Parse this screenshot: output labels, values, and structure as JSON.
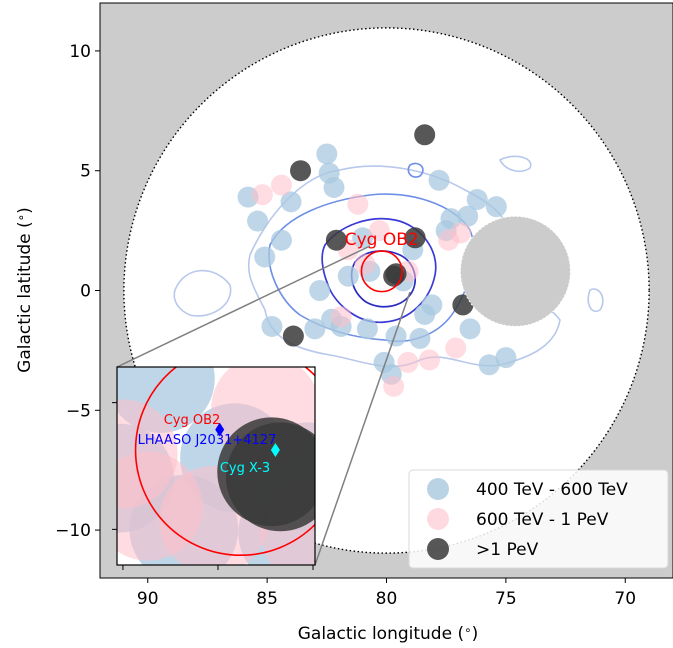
{
  "chart_data": {
    "type": "scatter",
    "title": "",
    "xlabel": "Galactic longitude ($^\\circ$)",
    "ylabel": "Galactic latitude ($^\\circ$)",
    "xlim": [
      92,
      68
    ],
    "ylim": [
      -12,
      12
    ],
    "x_ticks": [
      90,
      85,
      80,
      75,
      70
    ],
    "x_tick_labels": [
      "90",
      "85",
      "80",
      "75",
      "70"
    ],
    "y_ticks": [
      10,
      5,
      0,
      -5,
      -10
    ],
    "y_tick_labels": [
      "10",
      "5",
      "0",
      "−5",
      "−10"
    ],
    "region": {
      "center": [
        80,
        0
      ],
      "radius": 11
    },
    "masked_disk": {
      "center": [
        74.6,
        0.8
      ],
      "radius": 2.3
    },
    "colors": {
      "background_outside_region": "#cccccc",
      "series_400_600": "#a8c8df",
      "series_600_1000": "#ffc0cb",
      "series_over_1pev": "#3a3a3a",
      "cyg_ob2": "#ff0000",
      "lhaaso_source": "#0000ff",
      "cyg_x3": "#00ffff",
      "contour_dark": "#3a3ad6",
      "contour_mid": "#6e8fe6",
      "contour_light": "#b7c8ec"
    },
    "legend": {
      "position": "lower-right",
      "entries": [
        "400 TeV - 600 TeV",
        "600 TeV - 1 PeV",
        ">1 PeV"
      ]
    },
    "series": [
      {
        "name": "400 TeV - 600 TeV",
        "points": [
          [
            86.4,
            -4.2
          ],
          [
            85.8,
            3.9
          ],
          [
            85.4,
            2.9
          ],
          [
            85.1,
            1.4
          ],
          [
            84.0,
            3.7
          ],
          [
            82.5,
            5.7
          ],
          [
            82.4,
            4.9
          ],
          [
            82.2,
            4.3
          ],
          [
            81.6,
            0.6
          ],
          [
            81.0,
            2.2
          ],
          [
            80.8,
            -1.6
          ],
          [
            79.6,
            -1.9
          ],
          [
            78.6,
            -2.0
          ],
          [
            78.4,
            -1.0
          ],
          [
            78.1,
            -0.6
          ],
          [
            77.8,
            4.6
          ],
          [
            77.3,
            3.0
          ],
          [
            76.6,
            3.1
          ],
          [
            76.2,
            3.8
          ],
          [
            75.4,
            3.5
          ],
          [
            75.0,
            -2.8
          ],
          [
            80.1,
            -3.0
          ],
          [
            79.8,
            -3.5
          ],
          [
            82.3,
            -1.2
          ],
          [
            84.4,
            2.1
          ],
          [
            82.8,
            0.0
          ],
          [
            79.3,
            0.4
          ],
          [
            80.7,
            0.8
          ],
          [
            81.9,
            -1.5
          ],
          [
            76.5,
            -1.6
          ],
          [
            75.7,
            -3.1
          ],
          [
            77.5,
            2.5
          ],
          [
            84.8,
            -1.5
          ],
          [
            83.0,
            -1.6
          ],
          [
            78.9,
            1.7
          ]
        ]
      },
      {
        "name": "600 TeV - 1 PeV",
        "points": [
          [
            85.2,
            4.0
          ],
          [
            84.4,
            4.4
          ],
          [
            81.2,
            3.6
          ],
          [
            81.6,
            1.7
          ],
          [
            80.9,
            1.1
          ],
          [
            79.1,
            0.8
          ],
          [
            77.4,
            2.1
          ],
          [
            81.9,
            -1.1
          ],
          [
            79.1,
            -3.0
          ],
          [
            77.1,
            -2.4
          ],
          [
            78.2,
            -2.9
          ],
          [
            76.9,
            2.4
          ],
          [
            79.7,
            -4.0
          ],
          [
            80.3,
            2.5
          ]
        ]
      },
      {
        "name": ">1 PeV",
        "points": [
          [
            78.4,
            6.5
          ],
          [
            83.6,
            5.0
          ],
          [
            82.1,
            2.1
          ],
          [
            78.8,
            2.2
          ],
          [
            79.6,
            0.7
          ],
          [
            79.7,
            0.6
          ],
          [
            76.8,
            -0.6
          ],
          [
            83.9,
            -1.9
          ]
        ]
      }
    ],
    "annotations": [
      {
        "text": "Cyg OB2",
        "x": 80.2,
        "y": 1.9
      }
    ],
    "cyg_ob2_region": {
      "center": [
        80.2,
        0.8
      ],
      "radius": 0.85
    },
    "inset": {
      "xlim": [
        81.2,
        79.6
      ],
      "ylim": [
        -0.1,
        1.45
      ],
      "labels": [
        "Cyg OB2",
        "LHAASO J2031+4127",
        "Cyg X-3"
      ],
      "lhaaso_source": [
        80.37,
        0.96
      ],
      "cyg_x3": [
        79.92,
        0.8
      ],
      "points_400_600": [
        [
          80.85,
          1.36
        ],
        [
          80.25,
          0.74
        ],
        [
          79.66,
          0.59
        ],
        [
          81.18,
          0.58
        ],
        [
          80.66,
          0.18
        ],
        [
          79.78,
          0.15
        ]
      ],
      "points_600_1000": [
        [
          80.0,
          1.12
        ],
        [
          81.15,
          0.77
        ],
        [
          80.95,
          0.36
        ],
        [
          80.42,
          0.25
        ],
        [
          79.6,
          0.16
        ]
      ],
      "points_over_1pev": [
        [
          79.95,
          0.63
        ],
        [
          79.88,
          0.59
        ]
      ]
    }
  }
}
